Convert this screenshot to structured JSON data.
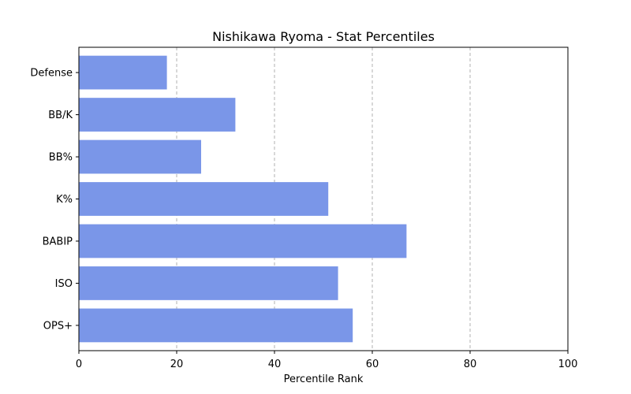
{
  "chart_data": {
    "type": "bar",
    "orientation": "horizontal",
    "title": "Nishikawa Ryoma - Stat Percentiles",
    "xlabel": "Percentile Rank",
    "ylabel": "",
    "categories": [
      "Defense",
      "BB/K",
      "BB%",
      "K%",
      "BABIP",
      "ISO",
      "OPS+"
    ],
    "values": [
      18,
      32,
      25,
      51,
      67,
      53,
      56
    ],
    "xlim": [
      0,
      100
    ],
    "xticks": [
      0,
      20,
      40,
      60,
      80,
      100
    ],
    "grid": "x-dashed",
    "bar_color": "#7a96e8"
  }
}
